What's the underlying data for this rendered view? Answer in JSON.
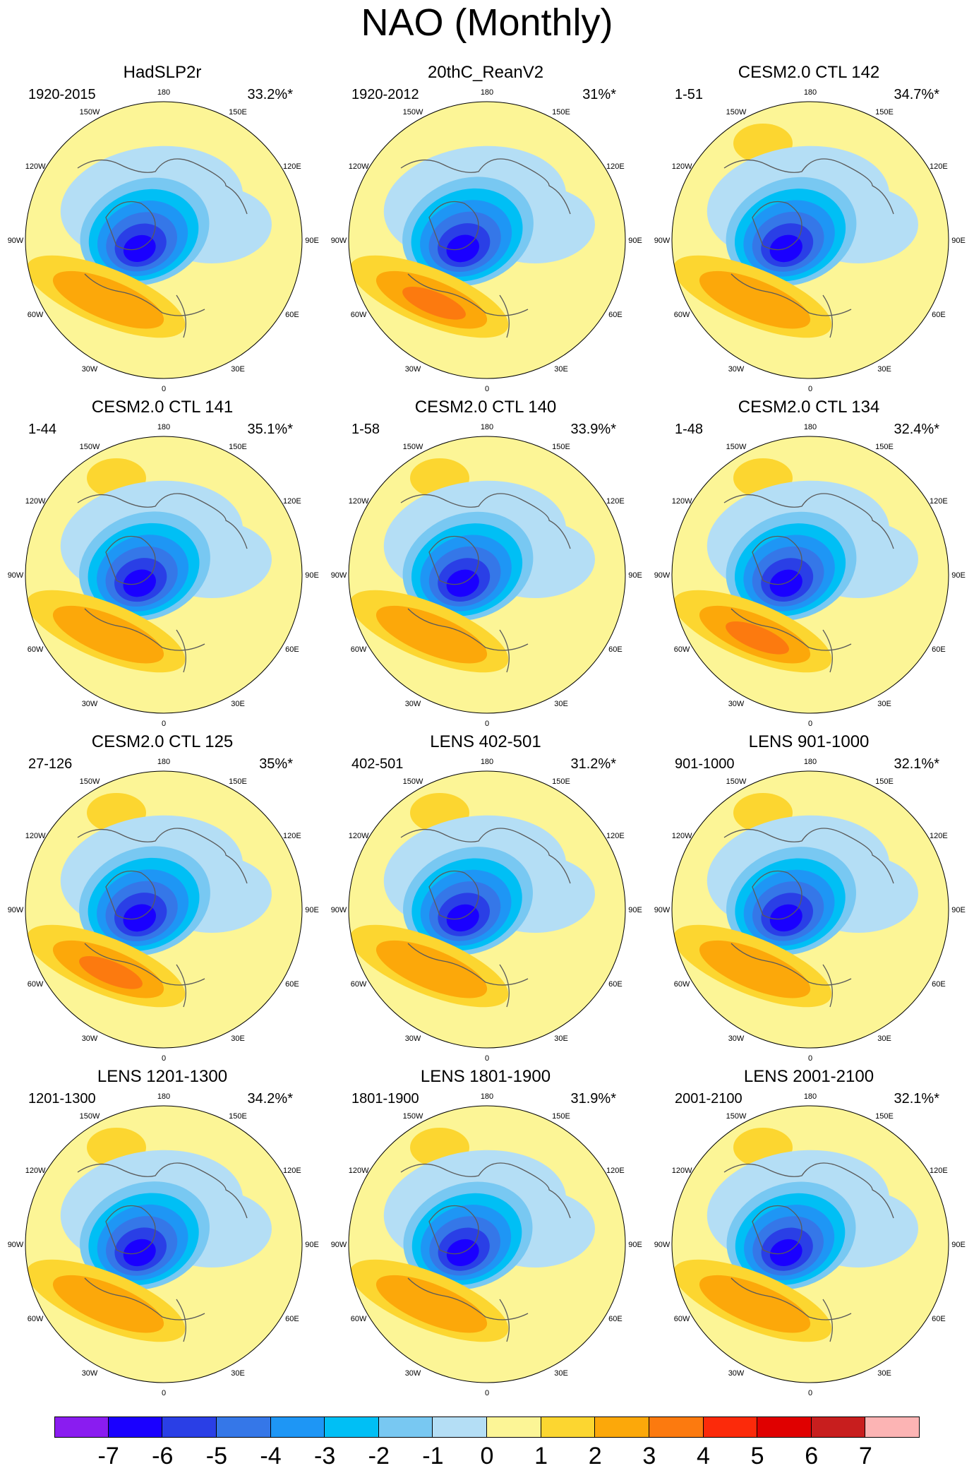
{
  "title": "NAO (Monthly)",
  "lon_labels": [
    {
      "text": "180",
      "lon": 180
    },
    {
      "text": "150E",
      "lon": 150
    },
    {
      "text": "120E",
      "lon": 120
    },
    {
      "text": "90E",
      "lon": 90
    },
    {
      "text": "60E",
      "lon": 60
    },
    {
      "text": "30E",
      "lon": 30
    },
    {
      "text": "0",
      "lon": 0
    },
    {
      "text": "30W",
      "lon": -30
    },
    {
      "text": "60W",
      "lon": -60
    },
    {
      "text": "90W",
      "lon": -90
    },
    {
      "text": "120W",
      "lon": -120
    },
    {
      "text": "150W",
      "lon": -150
    }
  ],
  "panels": [
    {
      "title": "HadSLP2r",
      "years": "1920-2015",
      "percent": "33.2%*",
      "strength": 0.85,
      "pos": 2
    },
    {
      "title": "20thC_ReanV2",
      "years": "1920-2012",
      "percent": "31%*",
      "strength": 1.0,
      "pos": 3
    },
    {
      "title": "CESM2.0 CTL 142",
      "years": "1-51",
      "percent": "34.7%*",
      "strength": 0.95,
      "pos": 2
    },
    {
      "title": "CESM2.0 CTL 141",
      "years": "1-44",
      "percent": "35.1%*",
      "strength": 1.0,
      "pos": 2
    },
    {
      "title": "CESM2.0 CTL 140",
      "years": "1-58",
      "percent": "33.9%*",
      "strength": 0.95,
      "pos": 2
    },
    {
      "title": "CESM2.0 CTL 134",
      "years": "1-48",
      "percent": "32.4%*",
      "strength": 0.95,
      "pos": 3
    },
    {
      "title": "CESM2.0 CTL 125",
      "years": "27-126",
      "percent": "35%*",
      "strength": 1.0,
      "pos": 3
    },
    {
      "title": "LENS 402-501",
      "years": "402-501",
      "percent": "31.2%*",
      "strength": 0.9,
      "pos": 2
    },
    {
      "title": "LENS 901-1000",
      "years": "901-1000",
      "percent": "32.1%*",
      "strength": 0.9,
      "pos": 2
    },
    {
      "title": "LENS 1201-1300",
      "years": "1201-1300",
      "percent": "34.2%*",
      "strength": 0.9,
      "pos": 2
    },
    {
      "title": "LENS 1801-1900",
      "years": "1801-1900",
      "percent": "31.9%*",
      "strength": 0.85,
      "pos": 2
    },
    {
      "title": "LENS 2001-2100",
      "years": "2001-2100",
      "percent": "32.1%*",
      "strength": 0.85,
      "pos": 2
    }
  ],
  "colorbar": {
    "labels": [
      "-7",
      "-6",
      "-5",
      "-4",
      "-3",
      "-2",
      "-1",
      "0",
      "1",
      "2",
      "3",
      "4",
      "5",
      "6",
      "7"
    ],
    "colors": [
      "#8a1cf0",
      "#1a00ff",
      "#2a3fe6",
      "#3577e8",
      "#1e96f5",
      "#00bff5",
      "#78c8f2",
      "#b4def5",
      "#fcf596",
      "#fcd630",
      "#fca80a",
      "#fc7a0f",
      "#fc2a0a",
      "#e00000",
      "#c81e1e",
      "#fcb4b4"
    ]
  }
}
